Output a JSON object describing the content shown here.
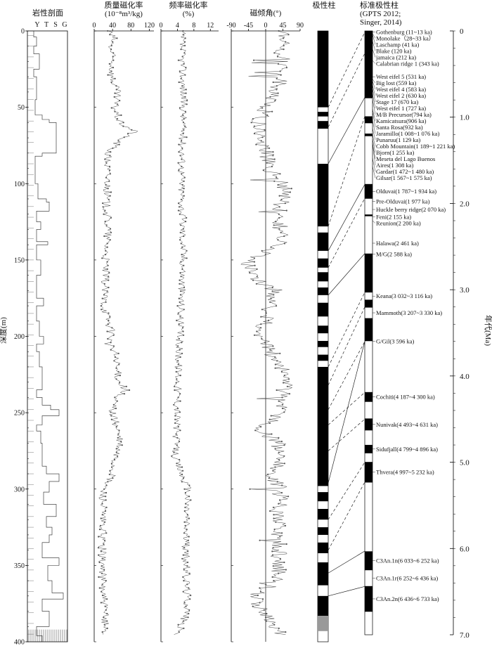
{
  "chart_data": {
    "type": "line",
    "panels": {
      "lithology": {
        "title": "岩性剖面",
        "grain_labels": [
          "Y",
          "T",
          "S",
          "G"
        ]
      },
      "chi": {
        "title_line1": "质量磁化率",
        "title_line2": "(10⁻⁸m³/kg)",
        "xlim": [
          0,
          130
        ],
        "xticks": [
          "0",
          "40",
          "80",
          "120"
        ]
      },
      "chifd": {
        "title_line1": "频率磁化率",
        "title_line2": "(%)",
        "xlim": [
          0,
          14
        ],
        "xticks": [
          "0",
          "4",
          "8",
          "12"
        ]
      },
      "incl": {
        "title": "磁倾角(°)",
        "xlim": [
          -90,
          90
        ],
        "xticks": [
          "-90",
          "-45",
          "0",
          "45",
          "90"
        ]
      },
      "polarity": {
        "title": "极性柱"
      },
      "gpts": {
        "title_line1": "标准极性柱",
        "title_line2": "(GPTS 2012;",
        "title_line3": "Singer, 2014)"
      }
    },
    "depth_axis": {
      "label": "深度(m)",
      "range": [
        0,
        400
      ],
      "ticks": [
        "0",
        "50",
        "100",
        "150",
        "200",
        "250",
        "300",
        "350",
        "400"
      ]
    },
    "age_axis": {
      "label": "年代(Ma)",
      "range": [
        0,
        7.0
      ],
      "ticks": [
        "0",
        "1.0",
        "2.0",
        "3.0",
        "4.0",
        "5.0",
        "6.0",
        "7.0"
      ]
    },
    "series": [
      {
        "name": "质量磁化率",
        "depth_ranges": [
          0,
          5,
          10,
          20,
          30,
          40,
          50,
          60,
          66,
          70,
          80,
          90,
          100,
          110,
          120,
          130,
          150,
          180,
          200,
          205,
          210,
          220,
          230,
          235,
          240,
          250,
          260,
          270,
          280,
          290,
          300,
          320,
          350,
          370,
          390,
          400
        ],
        "values": [
          32,
          42,
          35,
          40,
          38,
          50,
          45,
          55,
          90,
          60,
          30,
          28,
          30,
          26,
          28,
          30,
          25,
          22,
          40,
          30,
          45,
          48,
          55,
          70,
          45,
          40,
          50,
          55,
          45,
          40,
          20,
          18,
          18,
          20,
          25,
          20
        ]
      },
      {
        "name": "频率磁化率",
        "depth_ranges": [
          0,
          50,
          100,
          150,
          200,
          250,
          280,
          300,
          340,
          380,
          395
        ],
        "values": [
          5,
          5.5,
          5,
          5.5,
          4.5,
          4,
          3.5,
          6.5,
          6,
          6.5,
          4
        ]
      },
      {
        "name": "磁倾角",
        "depth_ranges": [
          0,
          30,
          60,
          90,
          100,
          120,
          140,
          150,
          160,
          170,
          200,
          220,
          230,
          240,
          250,
          260,
          270,
          280,
          290,
          300,
          320,
          340,
          360,
          370,
          380,
          390,
          395
        ],
        "values": [
          40,
          45,
          -20,
          10,
          50,
          35,
          40,
          -45,
          -40,
          25,
          -15,
          40,
          60,
          40,
          45,
          -20,
          35,
          40,
          10,
          40,
          30,
          35,
          30,
          -30,
          -10,
          20,
          40
        ]
      }
    ],
    "polarity_column": {
      "note": "normal (black) intervals, depth in m",
      "normal": [
        [
          0,
          50
        ],
        [
          53,
          56
        ],
        [
          59,
          64
        ],
        [
          87,
          128
        ],
        [
          132,
          144
        ],
        [
          149,
          155
        ],
        [
          158,
          164
        ],
        [
          168,
          173
        ],
        [
          178,
          187
        ],
        [
          193,
          198
        ],
        [
          203,
          207
        ],
        [
          212,
          216
        ],
        [
          220,
          298
        ],
        [
          302,
          308
        ],
        [
          313,
          320
        ],
        [
          325,
          330
        ],
        [
          335,
          342
        ],
        [
          348,
          363
        ],
        [
          370,
          383
        ]
      ],
      "undetermined": [
        [
          383,
          393
        ]
      ]
    },
    "gpts_column": {
      "note": "normal (black) intervals, age in Ma",
      "normal": [
        [
          0,
          0.78
        ],
        [
          0.99,
          1.07
        ],
        [
          1.19,
          1.22
        ],
        [
          1.775,
          1.945
        ],
        [
          2.128,
          2.148
        ],
        [
          2.581,
          3.032
        ],
        [
          3.116,
          3.207
        ],
        [
          3.33,
          3.596
        ],
        [
          4.187,
          4.3
        ],
        [
          4.493,
          4.631
        ],
        [
          4.799,
          4.896
        ],
        [
          4.997,
          5.235
        ],
        [
          6.033,
          6.252
        ],
        [
          6.436,
          6.733
        ]
      ]
    },
    "events": [
      {
        "label": "Gothenburg (11~13 ka)",
        "age": 0.012
      },
      {
        "label": "Monolake（28~33 ka）",
        "age": 0.03
      },
      {
        "label": "Laschamp (41 ka)",
        "age": 0.041
      },
      {
        "label": "Blake (120 ka)",
        "age": 0.12
      },
      {
        "label": "jamaica (212 ka)",
        "age": 0.212
      },
      {
        "label": "Calabrian ridge 1 (343 ka)",
        "age": 0.343
      },
      {
        "label": "West eifel 5 (531 ka)",
        "age": 0.531
      },
      {
        "label": "Big lost (559 ka)",
        "age": 0.559
      },
      {
        "label": "West eifel 4 (583 ka)",
        "age": 0.583
      },
      {
        "label": "West eifel 2 (630 ka)",
        "age": 0.63
      },
      {
        "label": "Stage 17 (670 ka)",
        "age": 0.67
      },
      {
        "label": "West eifel 1 (727 ka)",
        "age": 0.727
      },
      {
        "label": "M/B  Precursor(794 ka)",
        "age": 0.794
      },
      {
        "label": "Kamicatsura(906 ka)",
        "age": 0.906
      },
      {
        "label": "Santa Rosa(932 ka)",
        "age": 0.932
      },
      {
        "label": "Jaramillo(1 008~1 076 ka)",
        "age": 1.04
      },
      {
        "label": "Punaruu(1 129 ka)",
        "age": 1.129
      },
      {
        "label": "Cobb Mountain(1 189~1 221 ka)",
        "age": 1.205
      },
      {
        "label": "Bjorn(1 255 ka)",
        "age": 1.255
      },
      {
        "label": "Meseta del Lago  Buenos",
        "age": 1.3
      },
      {
        "label": "Aires(1 308 ka)",
        "age": 1.308
      },
      {
        "label": "Gardar(1 472~1 480 ka)",
        "age": 1.476
      },
      {
        "label": "Gilsar(1 567~1 575 ka)",
        "age": 1.571
      },
      {
        "label": "Olduvai(1 787~1 934 ka)",
        "age": 1.86
      },
      {
        "label": "Pre-Olduvai(1 977 ka)",
        "age": 1.977
      },
      {
        "label": "Huckle berry ridge(2 070 ka)",
        "age": 2.07
      },
      {
        "label": "Feni(2 155 ka)",
        "age": 2.155
      },
      {
        "label": "Reunion(2 200 ka)",
        "age": 2.2
      },
      {
        "label": "Halawa(2 461 ka)",
        "age": 2.461
      },
      {
        "label": "M/G(2 588 ka)",
        "age": 2.588
      },
      {
        "label": "Keana(3 032~3 116 ka)",
        "age": 3.074
      },
      {
        "label": "Mammoth(3 207~3 330 ka)",
        "age": 3.268
      },
      {
        "label": "G/Gil(3 596 ka)",
        "age": 3.596
      },
      {
        "label": "Cochiti(4 187~4 300 ka)",
        "age": 4.243
      },
      {
        "label": "Nunivak(4 493~4 631 ka)",
        "age": 4.562
      },
      {
        "label": "Sidufjall(4 799~4 896 ka)",
        "age": 4.847
      },
      {
        "label": "Thvera(4 997~5 232 ka)",
        "age": 5.114
      },
      {
        "label": "C3An.1n(6 033~6 252 ka)",
        "age": 6.142
      },
      {
        "label": "C3An.1r(6 252~6 436 ka)",
        "age": 6.344
      },
      {
        "label": "C3An.2n(6 436~6 733 ka)",
        "age": 6.584
      }
    ],
    "correlations": [
      {
        "depth": 50,
        "age": 0.015,
        "solid": false
      },
      {
        "depth": 63,
        "age": 0.26,
        "solid": false
      },
      {
        "depth": 87,
        "age": 0.77,
        "solid": true
      },
      {
        "depth": 128,
        "age": 0.99,
        "solid": false
      },
      {
        "depth": 144,
        "age": 1.78,
        "solid": true
      },
      {
        "depth": 155,
        "age": 1.94,
        "solid": false
      },
      {
        "depth": 173,
        "age": 2.58,
        "solid": true
      },
      {
        "depth": 220,
        "age": 3.03,
        "solid": false
      },
      {
        "depth": 232,
        "age": 3.2,
        "solid": false
      },
      {
        "depth": 248,
        "age": 3.6,
        "solid": false
      },
      {
        "depth": 258,
        "age": 4.19,
        "solid": false
      },
      {
        "depth": 275,
        "age": 4.5,
        "solid": false
      },
      {
        "depth": 296,
        "age": 3.6,
        "solid": true
      },
      {
        "depth": 320,
        "age": 5.0,
        "solid": false
      },
      {
        "depth": 340,
        "age": 5.23,
        "solid": false
      },
      {
        "depth": 355,
        "age": 6.03,
        "solid": true
      },
      {
        "depth": 370,
        "age": 6.44,
        "solid": true
      }
    ]
  }
}
